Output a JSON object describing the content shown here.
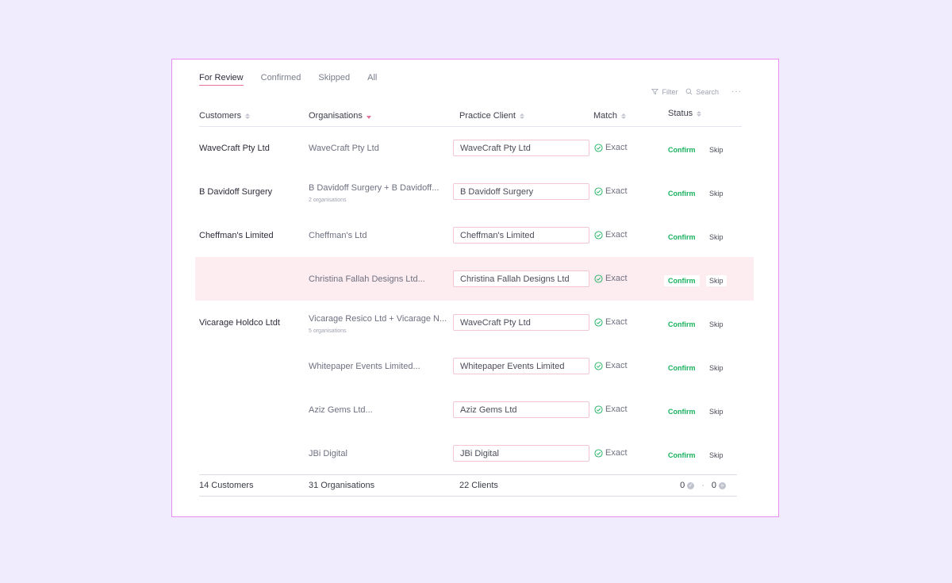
{
  "tabs": [
    {
      "label": "For Review",
      "active": true
    },
    {
      "label": "Confirmed",
      "active": false
    },
    {
      "label": "Skipped",
      "active": false
    },
    {
      "label": "All",
      "active": false
    }
  ],
  "tools": {
    "filter": "Filter",
    "search": "Search",
    "more": "···"
  },
  "columns": {
    "customers": "Customers",
    "organisations": "Organisations",
    "practice_client": "Practice Client",
    "match": "Match",
    "status": "Status"
  },
  "rows": [
    {
      "customer": "WaveCraft Pty Ltd",
      "org": "WaveCraft Pty Ltd",
      "org_sub": "",
      "client": "WaveCraft Pty Ltd",
      "match": "Exact",
      "confirm": "Confirm",
      "skip": "Skip"
    },
    {
      "customer": "B Davidoff Surgery",
      "org": "B Davidoff Surgery + B Davidoff...",
      "org_sub": "2 organisations",
      "client": "B Davidoff Surgery",
      "match": "Exact",
      "confirm": "Confirm",
      "skip": "Skip"
    },
    {
      "customer": "Cheffman's Limited",
      "org": "Cheffman's Ltd",
      "org_sub": "",
      "client": "Cheffman's Limited",
      "match": "Exact",
      "confirm": "Confirm",
      "skip": "Skip"
    },
    {
      "customer": "",
      "org": "Christina Fallah Designs Ltd...",
      "org_sub": "",
      "client": "Christina Fallah Designs Ltd",
      "match": "Exact",
      "confirm": "Confirm",
      "skip": "Skip",
      "highlight": true
    },
    {
      "customer": "Vicarage Holdco Ltdt",
      "org": "Vicarage Resico Ltd + Vicarage N...",
      "org_sub": "5 organisations",
      "client": "WaveCraft Pty Ltd",
      "match": "Exact",
      "confirm": "Confirm",
      "skip": "Skip"
    },
    {
      "customer": "",
      "org": "Whitepaper Events Limited...",
      "org_sub": "",
      "client": "Whitepaper Events Limited",
      "match": "Exact",
      "confirm": "Confirm",
      "skip": "Skip"
    },
    {
      "customer": "",
      "org": "Aziz Gems Ltd...",
      "org_sub": "",
      "client": "Aziz Gems Ltd",
      "match": "Exact",
      "confirm": "Confirm",
      "skip": "Skip"
    },
    {
      "customer": "",
      "org": "JBi Digital",
      "org_sub": "",
      "client": "JBi Digital",
      "match": "Exact",
      "confirm": "Confirm",
      "skip": "Skip"
    }
  ],
  "footer": {
    "customers": "14 Customers",
    "organisations": "31 Organisations",
    "clients": "22 Clients",
    "confirmed_count": "0",
    "separator": "·",
    "skipped_count": "0"
  },
  "colors": {
    "accent": "#e5739c",
    "confirm": "#1bb15f",
    "border": "#e88ef0",
    "background": "#f1ecfd"
  }
}
